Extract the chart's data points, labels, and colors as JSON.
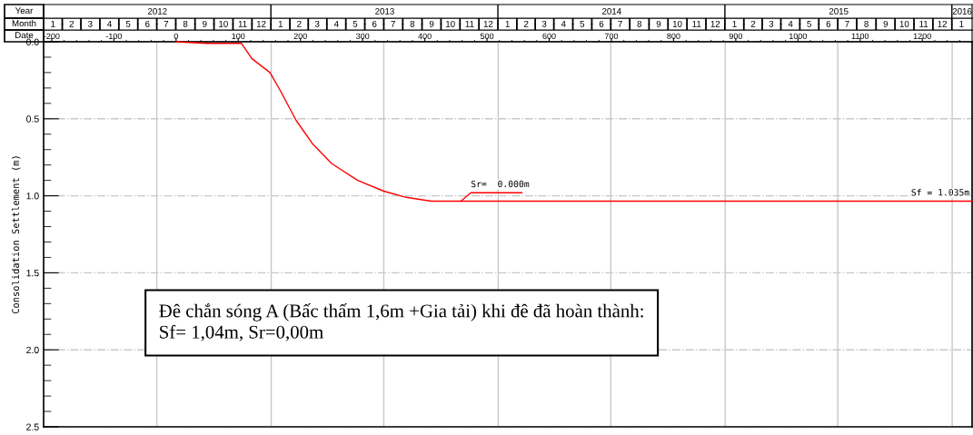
{
  "chart_data": {
    "type": "line",
    "ylabel": "Consolidation Settlement (m)",
    "xlabel": "Date",
    "x2label": "Month",
    "series": [
      {
        "color": "#ff0000",
        "x": [
          0,
          50,
          105,
          122,
          151,
          168,
          193,
          219,
          250,
          292,
          334,
          370,
          410,
          1280
        ],
        "values": [
          0.0,
          0.01,
          0.01,
          0.11,
          0.2,
          0.32,
          0.51,
          0.66,
          0.79,
          0.9,
          0.97,
          1.01,
          1.035,
          1.035
        ]
      },
      {
        "color": "#ff0000",
        "x": [
          458,
          474,
          556
        ],
        "values": [
          1.035,
          0.98,
          0.98
        ]
      }
    ],
    "xlim": [
      -213,
      1280
    ],
    "xticks": [
      -200,
      -100,
      0,
      100,
      200,
      300,
      400,
      500,
      600,
      700,
      800,
      900,
      1000,
      1100,
      1200,
      {
        "value": -180,
        "label": null
      },
      {
        "value": -160,
        "label": null
      },
      {
        "value": -140,
        "label": null
      },
      {
        "value": -120,
        "label": null
      },
      {
        "value": -80,
        "label": null
      },
      {
        "value": -60,
        "label": null
      },
      {
        "value": -40,
        "label": null
      },
      {
        "value": -20,
        "label": null
      },
      {
        "value": 20,
        "label": null
      },
      {
        "value": 40,
        "label": null
      },
      {
        "value": 60,
        "label": null
      },
      {
        "value": 80,
        "label": null
      },
      {
        "value": 120,
        "label": null
      },
      {
        "value": 140,
        "label": null
      },
      {
        "value": 160,
        "label": null
      },
      {
        "value": 180,
        "label": null
      },
      {
        "value": 220,
        "label": null
      },
      {
        "value": 240,
        "label": null
      },
      {
        "value": 260,
        "label": null
      },
      {
        "value": 280,
        "label": null
      },
      {
        "value": 320,
        "label": null
      },
      {
        "value": 340,
        "label": null
      },
      {
        "value": 360,
        "label": null
      },
      {
        "value": 380,
        "label": null
      },
      {
        "value": 420,
        "label": null
      },
      {
        "value": 440,
        "label": null
      },
      {
        "value": 460,
        "label": null
      },
      {
        "value": 480,
        "label": null
      },
      {
        "value": 520,
        "label": null
      },
      {
        "value": 540,
        "label": null
      },
      {
        "value": 560,
        "label": null
      },
      {
        "value": 580,
        "label": null
      },
      {
        "value": 620,
        "label": null
      },
      {
        "value": 640,
        "label": null
      },
      {
        "value": 660,
        "label": null
      },
      {
        "value": 680,
        "label": null
      },
      {
        "value": 720,
        "label": null
      },
      {
        "value": 740,
        "label": null
      },
      {
        "value": 760,
        "label": null
      },
      {
        "value": 780,
        "label": null
      },
      {
        "value": 820,
        "label": null
      },
      {
        "value": 840,
        "label": null
      },
      {
        "value": 860,
        "label": null
      },
      {
        "value": 880,
        "label": null
      },
      {
        "value": 920,
        "label": null
      },
      {
        "value": 940,
        "label": null
      },
      {
        "value": 960,
        "label": null
      },
      {
        "value": 980,
        "label": null
      },
      {
        "value": 1020,
        "label": null
      },
      {
        "value": 1040,
        "label": null
      },
      {
        "value": 1060,
        "label": null
      },
      {
        "value": 1080,
        "label": null
      },
      {
        "value": 1120,
        "label": null
      },
      {
        "value": 1140,
        "label": null
      },
      {
        "value": 1160,
        "label": null
      },
      {
        "value": 1180,
        "label": null
      },
      {
        "value": 1220,
        "label": null
      },
      {
        "value": 1240,
        "label": null
      },
      {
        "value": 1260,
        "label": null
      }
    ],
    "x2lim": [
      "2012-01-01",
      "2016-02-02"
    ],
    "x2ticks": [
      {
        "value": "2012-01-16",
        "label": "1"
      },
      {
        "value": "2012-02-15",
        "label": "2"
      },
      {
        "value": "2012-03-16",
        "label": "3"
      },
      {
        "value": "2012-04-16",
        "label": "4"
      },
      {
        "value": "2012-05-16",
        "label": "5"
      },
      {
        "value": "2012-06-16",
        "label": "6"
      },
      {
        "value": "2012-07-16",
        "label": "7"
      },
      {
        "value": "2012-08-16",
        "label": "8"
      },
      {
        "value": "2012-09-16",
        "label": "9"
      },
      {
        "value": "2012-10-16",
        "label": "10"
      },
      {
        "value": "2012-11-16",
        "label": "11"
      },
      {
        "value": "2012-12-16",
        "label": "12"
      },
      {
        "value": "2013-01-16",
        "label": "1"
      },
      {
        "value": "2013-02-15",
        "label": "2"
      },
      {
        "value": "2013-03-16",
        "label": "3"
      },
      {
        "value": "2013-04-16",
        "label": "4"
      },
      {
        "value": "2013-05-16",
        "label": "5"
      },
      {
        "value": "2013-06-16",
        "label": "6"
      },
      {
        "value": "2013-07-16",
        "label": "7"
      },
      {
        "value": "2013-08-16",
        "label": "8"
      },
      {
        "value": "2013-09-16",
        "label": "9"
      },
      {
        "value": "2013-10-16",
        "label": "10"
      },
      {
        "value": "2013-11-16",
        "label": "11"
      },
      {
        "value": "2013-12-16",
        "label": "12"
      },
      {
        "value": "2014-01-16",
        "label": "1"
      },
      {
        "value": "2014-02-15",
        "label": "2"
      },
      {
        "value": "2014-03-16",
        "label": "3"
      },
      {
        "value": "2014-04-16",
        "label": "4"
      },
      {
        "value": "2014-05-16",
        "label": "5"
      },
      {
        "value": "2014-06-16",
        "label": "6"
      },
      {
        "value": "2014-07-16",
        "label": "7"
      },
      {
        "value": "2014-08-16",
        "label": "8"
      },
      {
        "value": "2014-09-16",
        "label": "9"
      },
      {
        "value": "2014-10-16",
        "label": "10"
      },
      {
        "value": "2014-11-16",
        "label": "11"
      },
      {
        "value": "2014-12-16",
        "label": "12"
      },
      {
        "value": "2015-01-16",
        "label": "1"
      },
      {
        "value": "2015-02-15",
        "label": "2"
      },
      {
        "value": "2015-03-16",
        "label": "3"
      },
      {
        "value": "2015-04-16",
        "label": "4"
      },
      {
        "value": "2015-05-16",
        "label": "5"
      },
      {
        "value": "2015-06-16",
        "label": "6"
      },
      {
        "value": "2015-07-16",
        "label": "7"
      },
      {
        "value": "2015-08-16",
        "label": "8"
      },
      {
        "value": "2015-09-16",
        "label": "9"
      },
      {
        "value": "2015-10-16",
        "label": "10"
      },
      {
        "value": "2015-11-16",
        "label": "11"
      },
      {
        "value": "2015-12-16",
        "label": "12"
      },
      {
        "value": "2016-01-16",
        "label": "1"
      }
    ],
    "ylim": [
      2.5,
      0
    ],
    "yticks": [
      {
        "value": 0,
        "label": "0.0"
      },
      {
        "value": 0.5,
        "label": "0.5"
      },
      {
        "value": 1,
        "label": "1.0"
      },
      {
        "value": 1.5,
        "label": "1.5"
      },
      {
        "value": 2,
        "label": "2.0"
      },
      {
        "value": 2.5,
        "label": "2.5"
      },
      {
        "value": 0.1,
        "label": null
      },
      {
        "value": 0.2,
        "label": null
      },
      {
        "value": 0.3,
        "label": null
      },
      {
        "value": 0.4,
        "label": null
      },
      {
        "value": 0.6,
        "label": null
      },
      {
        "value": 0.7,
        "label": null
      },
      {
        "value": 0.8,
        "label": null
      },
      {
        "value": 0.9,
        "label": null
      },
      {
        "value": 1.1,
        "label": null
      },
      {
        "value": 1.2,
        "label": null
      },
      {
        "value": 1.3,
        "label": null
      },
      {
        "value": 1.4,
        "label": null
      },
      {
        "value": 1.6,
        "label": null
      },
      {
        "value": 1.7,
        "label": null
      },
      {
        "value": 1.8,
        "label": null
      },
      {
        "value": 1.9,
        "label": null
      },
      {
        "value": 2.1,
        "label": null
      },
      {
        "value": 2.2,
        "label": null
      },
      {
        "value": 2.3,
        "label": null
      },
      {
        "value": 2.4,
        "label": null
      }
    ],
    "grid": "y",
    "ref_lines": [
      {
        "axis": "x",
        "value": -31,
        "color": "#c8c8c8"
      },
      {
        "axis": "x",
        "value": 153,
        "color": "#c8c8c8"
      },
      {
        "axis": "x",
        "value": 334,
        "color": "#c8c8c8"
      },
      {
        "axis": "x",
        "value": 518,
        "color": "#c8c8c8"
      },
      {
        "axis": "x",
        "value": 699,
        "color": "#c8c8c8"
      },
      {
        "axis": "x",
        "value": 883,
        "color": "#c8c8c8"
      },
      {
        "axis": "x",
        "value": 1064,
        "color": "#c8c8c8"
      },
      {
        "axis": "x",
        "value": 1248,
        "color": "#c8c8c8"
      }
    ],
    "annotations": [
      "Year",
      "2012",
      "2013",
      "2014",
      "2015",
      "2016",
      {
        "text": "Sr=  0.000m",
        "x": 474,
        "y": 0.98
      },
      {
        "text": "Sf = 1.035m",
        "x": 1280,
        "y": 1.035
      },
      "Đê chắn sóng A (Bấc thấm 1,6m +Gia tải) khi đê đã hoàn thành:\nSf= 1,04m, Sr=0,00m"
    ]
  }
}
